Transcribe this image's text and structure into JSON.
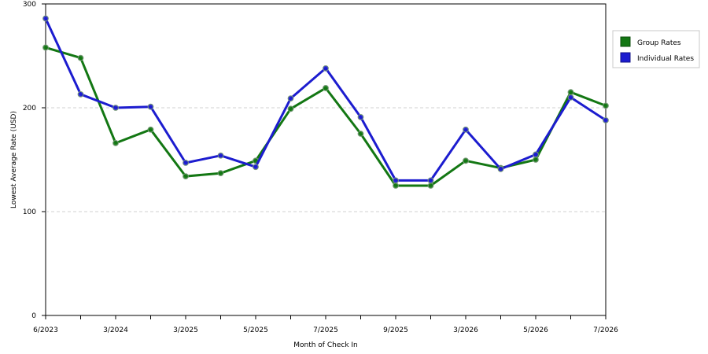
{
  "chart_data": {
    "type": "line",
    "title": "",
    "xlabel": "Month of Check In",
    "ylabel": "Lowest Average Rate (USD)",
    "categories": [
      "6/2023",
      "",
      "3/2024",
      "",
      "3/2025",
      "",
      "5/2025",
      "",
      "7/2025",
      "",
      "9/2025",
      "",
      "3/2026",
      "",
      "5/2026",
      "",
      "7/2026"
    ],
    "ylim": [
      0,
      300
    ],
    "yticks": [
      0,
      100,
      200,
      300
    ],
    "grid": "horizontal dashed",
    "legend_position": "right",
    "series": [
      {
        "name": "Group Rates",
        "color": "#137713",
        "values": [
          258,
          248,
          166,
          179,
          134,
          137,
          149,
          199,
          219,
          175,
          125,
          125,
          149,
          142,
          150,
          215,
          202
        ]
      },
      {
        "name": "Individual Rates",
        "color": "#1c1ccf",
        "values": [
          286,
          213,
          200,
          201,
          147,
          154,
          143,
          209,
          238,
          191,
          130,
          130,
          179,
          141,
          155,
          210,
          188
        ]
      }
    ]
  }
}
